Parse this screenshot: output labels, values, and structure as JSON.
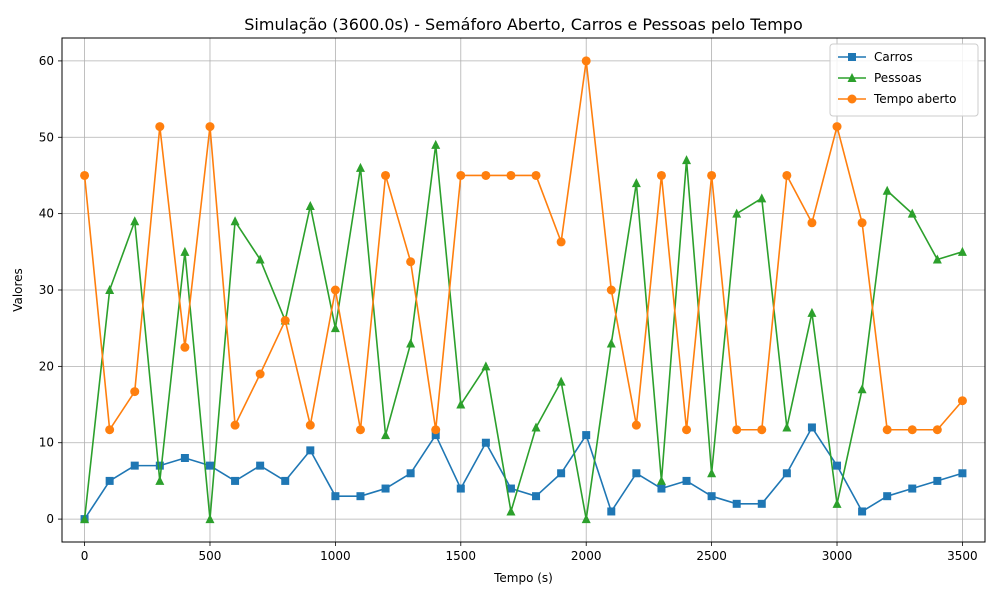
{
  "chart_data": {
    "type": "line",
    "title": "Simulação (3600.0s) - Semáforo Aberto, Carros e Pessoas pelo Tempo",
    "xlabel": "Tempo (s)",
    "ylabel": "Valores",
    "xlim": [
      -90,
      3590
    ],
    "ylim": [
      -3,
      63
    ],
    "xticks": [
      0,
      500,
      1000,
      1500,
      2000,
      2500,
      3000,
      3500
    ],
    "yticks": [
      0,
      10,
      20,
      30,
      40,
      50,
      60
    ],
    "grid": true,
    "legend_position": "top-right",
    "x": [
      0,
      100,
      200,
      300,
      400,
      500,
      600,
      700,
      800,
      900,
      1000,
      1100,
      1200,
      1300,
      1400,
      1500,
      1600,
      1700,
      1800,
      1900,
      2000,
      2100,
      2200,
      2300,
      2400,
      2500,
      2600,
      2700,
      2800,
      2900,
      3000,
      3100,
      3200,
      3300,
      3400,
      3500
    ],
    "series": [
      {
        "name": "Carros",
        "color": "#1f77b4",
        "marker": "square",
        "values": [
          0,
          5,
          7,
          7,
          8,
          7,
          5,
          7,
          5,
          9,
          3,
          3,
          4,
          6,
          11,
          4,
          10,
          4,
          3,
          6,
          11,
          1,
          6,
          4,
          5,
          3,
          2,
          2,
          6,
          12,
          7,
          1,
          3,
          4,
          5,
          6
        ]
      },
      {
        "name": "Pessoas",
        "color": "#2ca02c",
        "marker": "triangle",
        "values": [
          0,
          30,
          39,
          5,
          35,
          0,
          39,
          34,
          26,
          41,
          25,
          46,
          11,
          23,
          49,
          15,
          20,
          1,
          12,
          18,
          0,
          23,
          44,
          5,
          47,
          6,
          40,
          42,
          12,
          27,
          2,
          17,
          43,
          40,
          34,
          35
        ]
      },
      {
        "name": "Tempo aberto",
        "color": "#ff7f0e",
        "marker": "circle",
        "values": [
          45,
          11.7,
          16.7,
          51.4,
          22.5,
          51.4,
          12.3,
          19,
          26,
          12.3,
          30,
          11.7,
          45,
          33.7,
          11.7,
          45,
          45,
          45,
          45,
          36.3,
          60,
          30,
          12.3,
          45,
          11.7,
          45,
          11.7,
          11.7,
          45,
          38.8,
          51.4,
          38.8,
          11.7,
          11.7,
          11.7,
          15.5
        ]
      }
    ]
  }
}
